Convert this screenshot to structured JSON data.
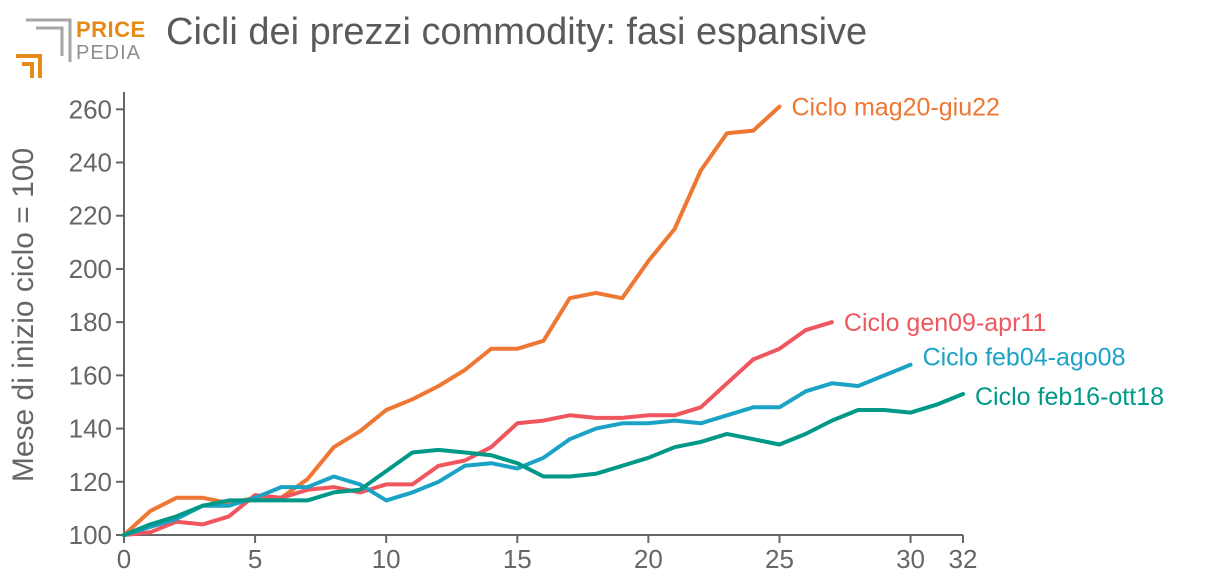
{
  "logo": {
    "word_top": "PRICE",
    "word_bottom": "PEDIA",
    "accent_color": "#E58A17",
    "gray_color": "#A6A6A6"
  },
  "chart_data": {
    "type": "line",
    "title": "Cicli dei prezzi commodity: fasi espansive",
    "xlabel": "",
    "ylabel": "Mese di inizio ciclo = 100",
    "xlim": [
      0,
      32
    ],
    "ylim": [
      100,
      265
    ],
    "x_ticks": [
      0,
      5,
      10,
      15,
      20,
      25,
      30,
      32
    ],
    "y_ticks": [
      100,
      120,
      140,
      160,
      180,
      200,
      220,
      240,
      260
    ],
    "grid": false,
    "legend": "end-of-line labels",
    "series": [
      {
        "name": "Ciclo mag20-giu22",
        "color": "#EE7733",
        "x": [
          0,
          1,
          2,
          3,
          4,
          5,
          6,
          7,
          8,
          9,
          10,
          11,
          12,
          13,
          14,
          15,
          16,
          17,
          18,
          19,
          20,
          21,
          22,
          23,
          24,
          25
        ],
        "values": [
          100,
          109,
          114,
          114,
          112,
          114,
          114,
          121,
          133,
          139,
          147,
          151,
          156,
          162,
          170,
          170,
          173,
          189,
          191,
          189,
          203,
          215,
          237,
          251,
          252,
          261
        ]
      },
      {
        "name": "Ciclo gen09-apr11",
        "color": "#F0565E",
        "x": [
          0,
          1,
          2,
          3,
          4,
          5,
          6,
          7,
          8,
          9,
          10,
          11,
          12,
          13,
          14,
          15,
          16,
          17,
          18,
          19,
          20,
          21,
          22,
          23,
          24,
          25,
          26,
          27
        ],
        "values": [
          100,
          101,
          105,
          104,
          107,
          115,
          114,
          117,
          118,
          116,
          119,
          119,
          126,
          128,
          133,
          142,
          143,
          145,
          144,
          144,
          145,
          145,
          148,
          157,
          166,
          170,
          177,
          180
        ]
      },
      {
        "name": "Ciclo feb04-ago08",
        "color": "#1BA3C6",
        "x": [
          0,
          1,
          2,
          3,
          4,
          5,
          6,
          7,
          8,
          9,
          10,
          11,
          12,
          13,
          14,
          15,
          16,
          17,
          18,
          19,
          20,
          21,
          22,
          23,
          24,
          25,
          26,
          27,
          28,
          29,
          30
        ],
        "values": [
          100,
          103,
          106,
          111,
          111,
          114,
          118,
          118,
          122,
          119,
          113,
          116,
          120,
          126,
          127,
          125,
          129,
          136,
          140,
          142,
          142,
          143,
          142,
          145,
          148,
          148,
          154,
          157,
          156,
          160,
          164
        ]
      },
      {
        "name": "Ciclo feb16-ott18",
        "color": "#009988",
        "x": [
          0,
          1,
          2,
          3,
          4,
          5,
          6,
          7,
          8,
          9,
          10,
          11,
          12,
          13,
          14,
          15,
          16,
          17,
          18,
          19,
          20,
          21,
          22,
          23,
          24,
          25,
          26,
          27,
          28,
          29,
          30,
          31,
          32
        ],
        "values": [
          100,
          104,
          107,
          111,
          113,
          113,
          113,
          113,
          116,
          117,
          124,
          131,
          132,
          131,
          130,
          127,
          122,
          122,
          123,
          126,
          129,
          133,
          135,
          138,
          136,
          134,
          138,
          143,
          147,
          147,
          146,
          149,
          153
        ]
      }
    ]
  }
}
